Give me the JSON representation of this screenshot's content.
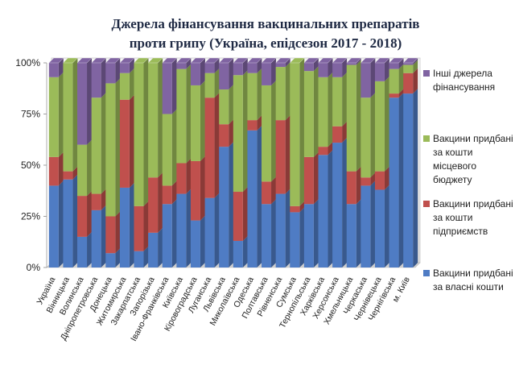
{
  "chart_data": {
    "type": "bar",
    "stacked": true,
    "percent": true,
    "title_lines": [
      "Джерела фінансування вакцинальних препаратів",
      "проти грипу (Україна, епідсезон  2017 - 2018)"
    ],
    "y_ticks": [
      "0%",
      "25%",
      "50%",
      "75%",
      "100%"
    ],
    "ylim": [
      0,
      100
    ],
    "categories": [
      "Україна",
      "Вінницька",
      "Волинська",
      "Дніпропетровська",
      "Донецька",
      "Житомирська",
      "Закарпатська",
      "Запорізька",
      "Івано-Франківська",
      "Київська",
      "Кіровоградська",
      "Луганська",
      "Львівська",
      "Миколаївська",
      "Одеська",
      "Полтавська",
      "Рівненська",
      "Сумська",
      "Тернопільська",
      "Харківська",
      "Херсонська",
      "Хмельницька",
      "Черкаська",
      "Чернівецька",
      "Чернігівська",
      "м. Київ"
    ],
    "series": [
      {
        "name": "Вакцини придбані за власні кошти",
        "color": "#4f7cc4",
        "values": [
          40,
          43,
          15,
          28,
          7,
          39,
          8,
          17,
          31,
          36,
          23,
          34,
          59,
          13,
          67,
          31,
          36,
          27,
          31,
          55,
          61,
          31,
          40,
          38,
          83,
          85
        ]
      },
      {
        "name": "Вакцини придбані за кошти підприємств",
        "color": "#c0504d",
        "values": [
          14,
          4,
          20,
          8,
          18,
          43,
          22,
          27,
          9,
          15,
          29,
          49,
          11,
          24,
          5,
          11,
          36,
          3,
          23,
          4,
          8,
          16,
          4,
          9,
          2,
          10
        ]
      },
      {
        "name": "Вакцини придбані за кошти місцевого бюджету",
        "color": "#9bbb59",
        "values": [
          39,
          53,
          25,
          47,
          65,
          13,
          70,
          56,
          35,
          46,
          37,
          12,
          17,
          57,
          23,
          47,
          26,
          70,
          42,
          34,
          24,
          52,
          39,
          44,
          12,
          4
        ]
      },
      {
        "name": "Інші джерела фінансування",
        "color": "#8064a2",
        "values": [
          7,
          0,
          40,
          17,
          10,
          5,
          0,
          0,
          25,
          3,
          11,
          5,
          13,
          6,
          5,
          11,
          2,
          0,
          4,
          7,
          7,
          1,
          17,
          9,
          3,
          1
        ]
      }
    ],
    "legend_position": "right",
    "legend": [
      {
        "lines": [
          "Інші джерела",
          "фінансування"
        ],
        "color": "#8064a2"
      },
      {
        "lines": [
          "Вакцини придбані",
          "за кошти",
          "місцевого",
          "бюджету"
        ],
        "color": "#9bbb59"
      },
      {
        "lines": [
          "Вакцини придбані",
          "за кошти",
          "підприємств"
        ],
        "color": "#c0504d"
      },
      {
        "lines": [
          "Вакцини придбані",
          "за власні кошти"
        ],
        "color": "#4f7cc4"
      }
    ],
    "grid": false
  }
}
